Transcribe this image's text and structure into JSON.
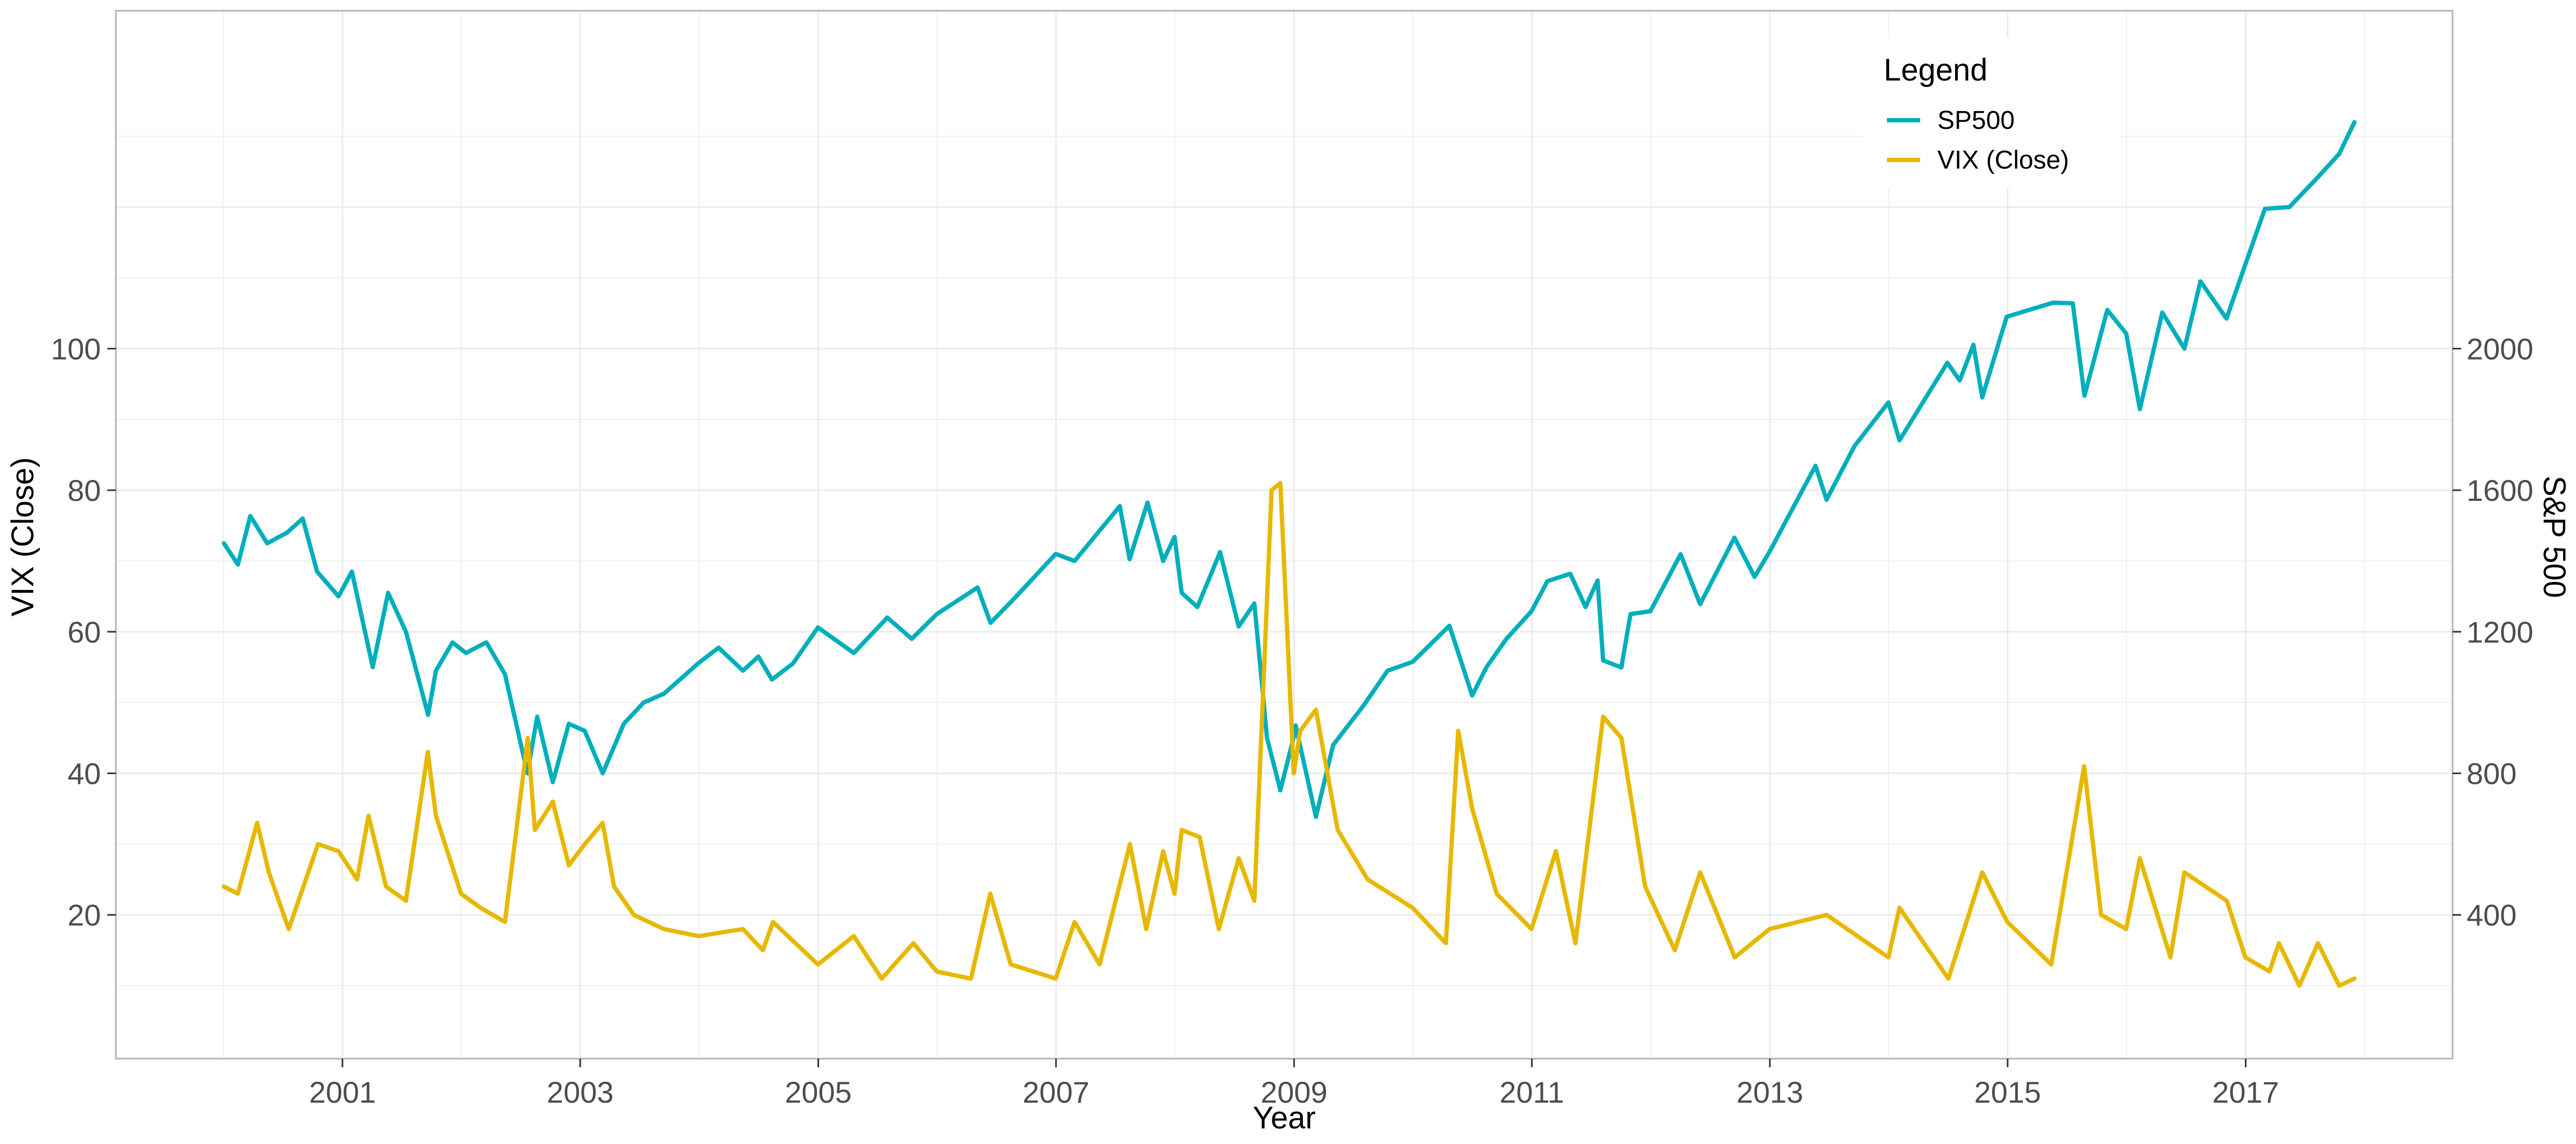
{
  "chart_data": {
    "type": "line",
    "title": "",
    "xlabel": "Year",
    "ylabel": "VIX (Close)",
    "y2label": "S&P 500",
    "x_ticks": [
      "2001",
      "2003",
      "2005",
      "2007",
      "2009",
      "2011",
      "2013",
      "2015",
      "2017"
    ],
    "xlim": [
      "2000-01-01",
      "2018-01-01"
    ],
    "y_ticks": [
      20,
      40,
      60,
      80,
      100
    ],
    "ylim": [
      5,
      140
    ],
    "y2_ticks": [
      400,
      800,
      1200,
      1600,
      2000
    ],
    "y2lim": [
      100,
      2800
    ],
    "grid": true,
    "legend": {
      "title": "Legend",
      "position": "top-right"
    },
    "series": [
      {
        "name": "SP500",
        "axis": "right",
        "color": "#00AFBB",
        "points": [
          [
            "2000-01-03",
            1450
          ],
          [
            "2000-02-15",
            1390
          ],
          [
            "2000-03-24",
            1527
          ],
          [
            "2000-05-15",
            1450
          ],
          [
            "2000-07-15",
            1480
          ],
          [
            "2000-09-01",
            1520
          ],
          [
            "2000-10-15",
            1370
          ],
          [
            "2000-12-20",
            1300
          ],
          [
            "2001-01-30",
            1370
          ],
          [
            "2001-04-04",
            1100
          ],
          [
            "2001-05-21",
            1310
          ],
          [
            "2001-07-15",
            1200
          ],
          [
            "2001-09-21",
            965
          ],
          [
            "2001-10-15",
            1090
          ],
          [
            "2001-12-05",
            1170
          ],
          [
            "2002-01-15",
            1140
          ],
          [
            "2002-03-19",
            1170
          ],
          [
            "2002-05-15",
            1080
          ],
          [
            "2002-07-23",
            800
          ],
          [
            "2002-08-22",
            960
          ],
          [
            "2002-10-09",
            775
          ],
          [
            "2002-11-27",
            940
          ],
          [
            "2003-01-15",
            920
          ],
          [
            "2003-03-11",
            800
          ],
          [
            "2003-05-15",
            940
          ],
          [
            "2003-07-15",
            1000
          ],
          [
            "2003-09-15",
            1025
          ],
          [
            "2003-12-31",
            1112
          ],
          [
            "2004-03-01",
            1155
          ],
          [
            "2004-05-15",
            1090
          ],
          [
            "2004-07-01",
            1130
          ],
          [
            "2004-08-12",
            1065
          ],
          [
            "2004-10-15",
            1110
          ],
          [
            "2004-12-31",
            1212
          ],
          [
            "2005-04-20",
            1140
          ],
          [
            "2005-08-01",
            1240
          ],
          [
            "2005-10-15",
            1180
          ],
          [
            "2005-12-31",
            1250
          ],
          [
            "2006-05-05",
            1325
          ],
          [
            "2006-06-14",
            1225
          ],
          [
            "2006-09-01",
            1300
          ],
          [
            "2006-12-31",
            1420
          ],
          [
            "2007-02-27",
            1400
          ],
          [
            "2007-07-16",
            1555
          ],
          [
            "2007-08-15",
            1405
          ],
          [
            "2007-10-09",
            1565
          ],
          [
            "2007-11-26",
            1400
          ],
          [
            "2007-12-31",
            1468
          ],
          [
            "2008-01-22",
            1310
          ],
          [
            "2008-03-10",
            1270
          ],
          [
            "2008-05-19",
            1425
          ],
          [
            "2008-07-15",
            1215
          ],
          [
            "2008-09-01",
            1280
          ],
          [
            "2008-10-10",
            900
          ],
          [
            "2008-11-20",
            752
          ],
          [
            "2008-12-31",
            903
          ],
          [
            "2009-01-06",
            935
          ],
          [
            "2009-03-09",
            677
          ],
          [
            "2009-05-01",
            880
          ],
          [
            "2009-08-01",
            990
          ],
          [
            "2009-10-15",
            1090
          ],
          [
            "2009-12-31",
            1115
          ],
          [
            "2010-04-23",
            1217
          ],
          [
            "2010-07-02",
            1020
          ],
          [
            "2010-08-15",
            1100
          ],
          [
            "2010-10-15",
            1180
          ],
          [
            "2010-12-31",
            1258
          ],
          [
            "2011-02-18",
            1343
          ],
          [
            "2011-04-29",
            1364
          ],
          [
            "2011-06-15",
            1270
          ],
          [
            "2011-07-22",
            1345
          ],
          [
            "2011-08-08",
            1119
          ],
          [
            "2011-10-03",
            1099
          ],
          [
            "2011-10-31",
            1250
          ],
          [
            "2011-12-31",
            1258
          ],
          [
            "2012-04-02",
            1419
          ],
          [
            "2012-06-01",
            1278
          ],
          [
            "2012-09-14",
            1466
          ],
          [
            "2012-11-15",
            1355
          ],
          [
            "2012-12-31",
            1426
          ],
          [
            "2013-05-21",
            1669
          ],
          [
            "2013-06-24",
            1573
          ],
          [
            "2013-09-18",
            1725
          ],
          [
            "2013-12-31",
            1848
          ],
          [
            "2014-02-03",
            1741
          ],
          [
            "2014-06-30",
            1960
          ],
          [
            "2014-08-07",
            1910
          ],
          [
            "2014-09-18",
            2011
          ],
          [
            "2014-10-15",
            1862
          ],
          [
            "2014-12-29",
            2090
          ],
          [
            "2015-05-21",
            2130
          ],
          [
            "2015-07-20",
            2128
          ],
          [
            "2015-08-25",
            1867
          ],
          [
            "2015-11-03",
            2109
          ],
          [
            "2015-12-31",
            2043
          ],
          [
            "2016-02-11",
            1829
          ],
          [
            "2016-04-20",
            2102
          ],
          [
            "2016-06-27",
            2000
          ],
          [
            "2016-08-15",
            2190
          ],
          [
            "2016-11-03",
            2085
          ],
          [
            "2016-12-31",
            2238
          ],
          [
            "2017-03-01",
            2395
          ],
          [
            "2017-05-15",
            2400
          ],
          [
            "2017-08-01",
            2475
          ],
          [
            "2017-10-15",
            2550
          ],
          [
            "2017-12-01",
            2640
          ]
        ]
      },
      {
        "name": "VIX (Close)",
        "axis": "left",
        "color": "#E7B800",
        "points": [
          [
            "2000-01-03",
            24
          ],
          [
            "2000-02-15",
            23
          ],
          [
            "2000-04-14",
            33
          ],
          [
            "2000-05-20",
            26
          ],
          [
            "2000-07-20",
            18
          ],
          [
            "2000-10-18",
            30
          ],
          [
            "2000-12-20",
            29
          ],
          [
            "2001-02-15",
            25
          ],
          [
            "2001-03-22",
            34
          ],
          [
            "2001-05-15",
            24
          ],
          [
            "2001-07-15",
            22
          ],
          [
            "2001-09-20",
            43
          ],
          [
            "2001-10-15",
            34
          ],
          [
            "2001-12-31",
            23
          ],
          [
            "2002-03-01",
            21
          ],
          [
            "2002-05-15",
            19
          ],
          [
            "2002-07-24",
            45
          ],
          [
            "2002-08-15",
            32
          ],
          [
            "2002-10-09",
            36
          ],
          [
            "2002-11-27",
            27
          ],
          [
            "2003-01-15",
            30
          ],
          [
            "2003-03-11",
            33
          ],
          [
            "2003-04-15",
            24
          ],
          [
            "2003-06-15",
            20
          ],
          [
            "2003-09-15",
            18
          ],
          [
            "2003-12-31",
            17
          ],
          [
            "2004-05-15",
            18
          ],
          [
            "2004-07-15",
            15
          ],
          [
            "2004-08-15",
            19
          ],
          [
            "2004-12-31",
            13
          ],
          [
            "2005-04-20",
            17
          ],
          [
            "2005-07-15",
            11
          ],
          [
            "2005-10-20",
            16
          ],
          [
            "2005-12-31",
            12
          ],
          [
            "2006-04-15",
            11
          ],
          [
            "2006-06-13",
            23
          ],
          [
            "2006-08-15",
            13
          ],
          [
            "2006-12-31",
            11
          ],
          [
            "2007-02-27",
            19
          ],
          [
            "2007-05-15",
            13
          ],
          [
            "2007-08-16",
            30
          ],
          [
            "2007-10-05",
            18
          ],
          [
            "2007-11-26",
            29
          ],
          [
            "2007-12-31",
            23
          ],
          [
            "2008-01-22",
            32
          ],
          [
            "2008-03-17",
            31
          ],
          [
            "2008-05-15",
            18
          ],
          [
            "2008-07-15",
            28
          ],
          [
            "2008-09-01",
            22
          ],
          [
            "2008-10-24",
            80
          ],
          [
            "2008-11-20",
            81
          ],
          [
            "2008-12-31",
            40
          ],
          [
            "2009-01-20",
            46
          ],
          [
            "2009-03-09",
            49
          ],
          [
            "2009-05-15",
            32
          ],
          [
            "2009-08-15",
            25
          ],
          [
            "2009-12-31",
            21
          ],
          [
            "2010-04-12",
            16
          ],
          [
            "2010-05-20",
            46
          ],
          [
            "2010-07-02",
            35
          ],
          [
            "2010-09-15",
            23
          ],
          [
            "2010-12-31",
            18
          ],
          [
            "2011-03-16",
            29
          ],
          [
            "2011-05-15",
            16
          ],
          [
            "2011-08-08",
            48
          ],
          [
            "2011-10-03",
            45
          ],
          [
            "2011-12-15",
            24
          ],
          [
            "2012-03-15",
            15
          ],
          [
            "2012-06-01",
            26
          ],
          [
            "2012-09-15",
            14
          ],
          [
            "2012-12-31",
            18
          ],
          [
            "2013-06-24",
            20
          ],
          [
            "2013-12-31",
            14
          ],
          [
            "2014-02-03",
            21
          ],
          [
            "2014-07-03",
            11
          ],
          [
            "2014-10-15",
            26
          ],
          [
            "2014-12-31",
            19
          ],
          [
            "2015-05-15",
            13
          ],
          [
            "2015-08-24",
            41
          ],
          [
            "2015-10-15",
            20
          ],
          [
            "2015-12-31",
            18
          ],
          [
            "2016-02-11",
            28
          ],
          [
            "2016-05-15",
            14
          ],
          [
            "2016-06-27",
            26
          ],
          [
            "2016-11-04",
            22
          ],
          [
            "2016-12-31",
            14
          ],
          [
            "2017-03-15",
            12
          ],
          [
            "2017-04-13",
            16
          ],
          [
            "2017-06-15",
            10
          ],
          [
            "2017-08-11",
            16
          ],
          [
            "2017-10-15",
            10
          ],
          [
            "2017-12-01",
            11
          ]
        ]
      }
    ]
  }
}
